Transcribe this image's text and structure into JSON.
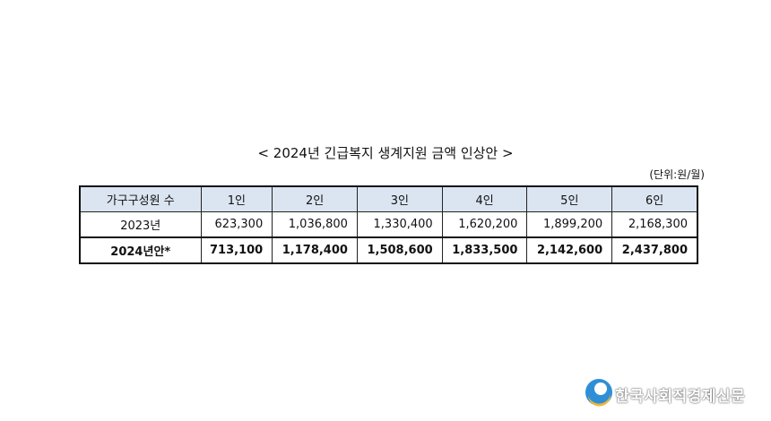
{
  "title": "< 2024년 긴급복지 생계지원 금액 인상안 >",
  "unit": "(단위:원/월)",
  "table": {
    "header": [
      "가구구성원 수",
      "1인",
      "2인",
      "3인",
      "4인",
      "5인",
      "6인"
    ],
    "rows": [
      [
        "2023년",
        "623,300",
        "1,036,800",
        "1,330,400",
        "1,620,200",
        "1,899,200",
        "2,168,300"
      ],
      [
        "2024년안*",
        "713,100",
        "1,178,400",
        "1,508,600",
        "1,833,500",
        "2,142,600",
        "2,437,800"
      ]
    ]
  },
  "watermark": "한국사회적경제신문"
}
